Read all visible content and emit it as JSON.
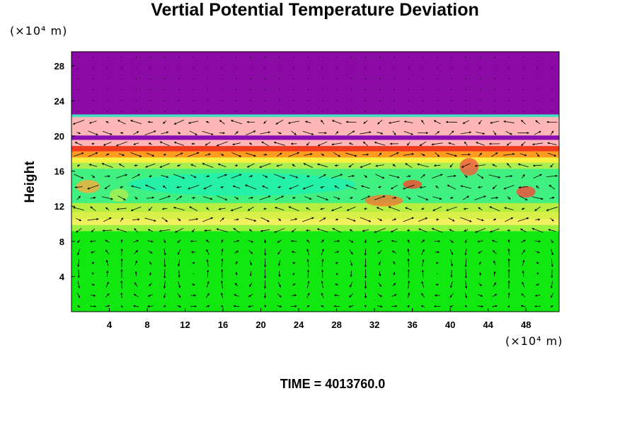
{
  "chart_data": {
    "type": "heatmap",
    "title": "Vertial Potential Temperature Deviation",
    "xlabel": "",
    "ylabel": "Height",
    "x_unit": "(×10⁴ m)",
    "y_unit": "(×10⁴ m)",
    "xlim": [
      0,
      51.5
    ],
    "ylim": [
      0,
      29.6
    ],
    "x_ticks": [
      4,
      8,
      12,
      16,
      20,
      24,
      28,
      32,
      36,
      40,
      44,
      48
    ],
    "y_ticks": [
      4,
      8,
      12,
      16,
      20,
      24,
      28
    ],
    "bands": [
      {
        "y0": 0,
        "y1": 9.2,
        "color": "#10e810"
      },
      {
        "y0": 9.2,
        "y1": 9.9,
        "color": "#9cf040"
      },
      {
        "y0": 9.9,
        "y1": 10.6,
        "color": "#f0f060"
      },
      {
        "y0": 10.6,
        "y1": 11.4,
        "color": "#d8f048"
      },
      {
        "y0": 11.4,
        "y1": 12.4,
        "color": "#b8ee40"
      },
      {
        "y0": 12.4,
        "y1": 16.3,
        "color": "#40f080"
      },
      {
        "y0": 16.3,
        "y1": 17.0,
        "color": "#a8ee50"
      },
      {
        "y0": 17.0,
        "y1": 17.6,
        "color": "#f4f040"
      },
      {
        "y0": 17.6,
        "y1": 18.3,
        "color": "#ff9c20"
      },
      {
        "y0": 18.3,
        "y1": 18.9,
        "color": "#f03a20"
      },
      {
        "y0": 18.9,
        "y1": 19.6,
        "color": "#ffb6b6"
      },
      {
        "y0": 19.6,
        "y1": 20.1,
        "color": "#8a10b0"
      },
      {
        "y0": 20.1,
        "y1": 22.2,
        "color": "#ffb6b6"
      },
      {
        "y0": 22.2,
        "y1": 22.5,
        "color": "#40e0c0"
      },
      {
        "y0": 22.5,
        "y1": 29.6,
        "color": "#8b0aa5"
      }
    ],
    "patches": [
      {
        "x0": 6,
        "x1": 30,
        "y0": 13.2,
        "y1": 15.8,
        "color": "#20f0b0"
      },
      {
        "x0": 31,
        "x1": 35,
        "y0": 12.0,
        "y1": 13.3,
        "color": "#f08030"
      },
      {
        "x0": 35,
        "x1": 37,
        "y0": 14.0,
        "y1": 15.0,
        "color": "#f05030"
      },
      {
        "x0": 41,
        "x1": 43,
        "y0": 15.5,
        "y1": 17.5,
        "color": "#f06040"
      },
      {
        "x0": 47,
        "x1": 49,
        "y0": 13.0,
        "y1": 14.3,
        "color": "#f05040"
      },
      {
        "x0": 0.5,
        "x1": 3,
        "y0": 13.5,
        "y1": 15.0,
        "color": "#f0b040"
      },
      {
        "x0": 4,
        "x1": 6,
        "y0": 12.5,
        "y1": 14.0,
        "color": "#a8ee50"
      }
    ],
    "vector_field": {
      "nx": 34,
      "ny": 24,
      "style": "cellular flow below 9 km, shear flow aloft"
    },
    "colors": {
      "purple": "#8b0aa5",
      "pink": "#ffb6b6",
      "green": "#10e810"
    }
  },
  "time_label": "TIME = 4013760.0"
}
